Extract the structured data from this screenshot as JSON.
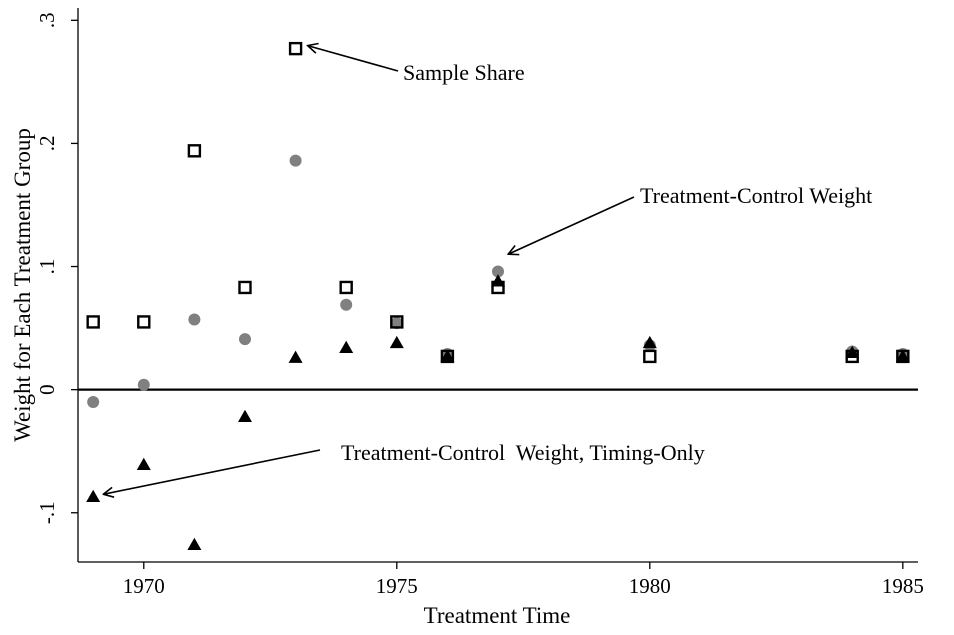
{
  "chart_data": {
    "type": "scatter",
    "title": "",
    "xlabel": "Treatment Time",
    "ylabel": "Weight for Each Treatment Group",
    "xlim": [
      1968.7,
      1985.3
    ],
    "ylim": [
      -0.14,
      0.31
    ],
    "xticks": [
      1970,
      1975,
      1980,
      1985
    ],
    "xtick_labels": [
      "1970",
      "1975",
      "1980",
      "1985"
    ],
    "yticks": [
      -0.1,
      0,
      0.1,
      0.2,
      0.3
    ],
    "ytick_labels": [
      "-.1",
      "0",
      ".1",
      ".2",
      ".3"
    ],
    "zero_line": true,
    "grid": false,
    "legend": "none",
    "series": [
      {
        "name": "Sample Share",
        "marker": "hollow-square",
        "color": "#000000",
        "x": [
          1969,
          1970,
          1971,
          1972,
          1973,
          1974,
          1975,
          1976,
          1977,
          1980,
          1984,
          1985
        ],
        "y": [
          0.055,
          0.055,
          0.194,
          0.083,
          0.277,
          0.083,
          0.055,
          0.027,
          0.083,
          0.027,
          0.027,
          0.027
        ]
      },
      {
        "name": "Treatment-Control Weight",
        "marker": "filled-circle",
        "color": "#808080",
        "x": [
          1969,
          1970,
          1971,
          1972,
          1973,
          1974,
          1975,
          1976,
          1977,
          1980,
          1984,
          1985
        ],
        "y": [
          -0.01,
          0.004,
          0.057,
          0.041,
          0.186,
          0.069,
          0.054,
          0.029,
          0.096,
          0.036,
          0.031,
          0.029
        ]
      },
      {
        "name": "Treatment-Control  Weight, Timing-Only",
        "marker": "filled-triangle",
        "color": "#000000",
        "x": [
          1969,
          1970,
          1971,
          1972,
          1973,
          1974,
          1975,
          1976,
          1977,
          1980,
          1984,
          1985
        ],
        "y": [
          -0.087,
          -0.061,
          -0.126,
          -0.022,
          0.026,
          0.034,
          0.038,
          0.027,
          0.088,
          0.038,
          0.03,
          0.027
        ]
      }
    ],
    "annotations": [
      {
        "text": "Sample Share",
        "target_series": 0,
        "target_x": 1973,
        "target_y": 0.277
      },
      {
        "text": "Treatment-Control Weight",
        "target_series": 1,
        "target_x": 1977.2,
        "target_y": 0.11
      },
      {
        "text": "Treatment-Control  Weight, Timing-Only",
        "target_series": 2,
        "target_x": 1969.2,
        "target_y": -0.085
      }
    ]
  }
}
